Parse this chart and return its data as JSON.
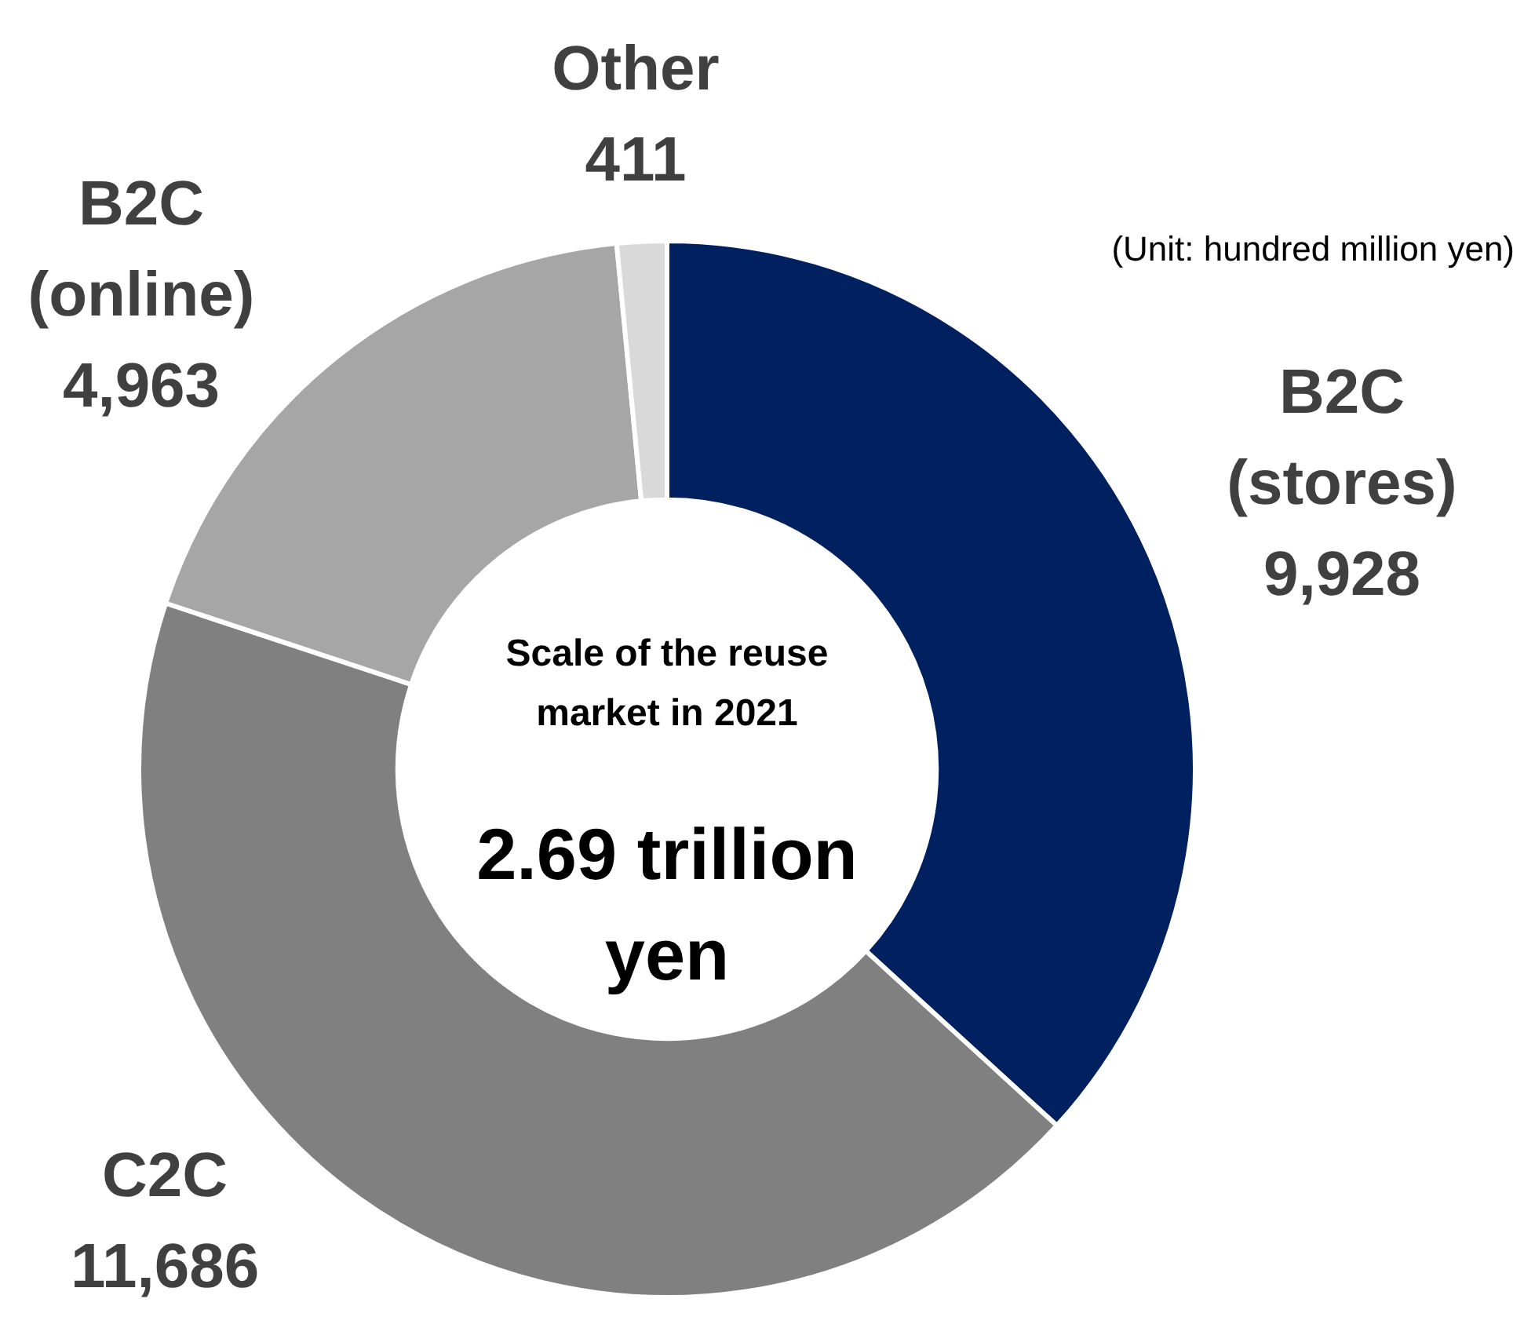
{
  "chart_data": {
    "type": "donut",
    "title": "Scale of the reuse market in 2021",
    "annotations": [
      "2.69 trillion yen",
      "(Unit: hundred million yen)"
    ],
    "categories": [
      "B2C (stores)",
      "C2C",
      "B2C (online)",
      "Other"
    ],
    "values": [
      9928,
      11686,
      4963,
      411
    ],
    "colors": [
      "#002060",
      "#808080",
      "#a6a6a6",
      "#d9d9d9"
    ],
    "value_labels": [
      "9,928",
      "11,686",
      "4,963",
      "411"
    ],
    "legend": false
  }
}
